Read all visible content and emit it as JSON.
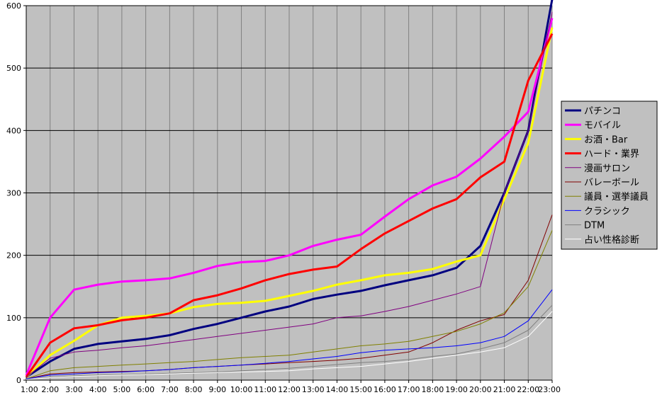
{
  "chart_data": {
    "type": "line",
    "x_labels": [
      "1:00",
      "2:00",
      "3:00",
      "4:00",
      "5:00",
      "6:00",
      "7:00",
      "8:00",
      "9:00",
      "10:00",
      "11:00",
      "12:00",
      "13:00",
      "14:00",
      "15:00",
      "16:00",
      "17:00",
      "18:00",
      "19:00",
      "20:00",
      "21:00",
      "22:00",
      "23:00"
    ],
    "y_ticks": [
      0,
      100,
      200,
      300,
      400,
      500,
      600
    ],
    "ylim": [
      0,
      600
    ],
    "grid": true,
    "background": "#c0c0c0",
    "legend_position": "right",
    "series": [
      {
        "name": "パチンコ",
        "color": "#000080",
        "width": 3,
        "values": [
          5,
          30,
          50,
          58,
          62,
          66,
          72,
          82,
          90,
          100,
          110,
          118,
          130,
          137,
          143,
          152,
          160,
          168,
          180,
          215,
          300,
          400,
          610
        ]
      },
      {
        "name": "モバイル",
        "color": "#ff00ff",
        "width": 3,
        "values": [
          8,
          100,
          145,
          153,
          158,
          160,
          163,
          172,
          183,
          189,
          191,
          200,
          215,
          225,
          233,
          262,
          290,
          312,
          326,
          355,
          390,
          430,
          580
        ]
      },
      {
        "name": "お酒・Bar",
        "color": "#ffff00",
        "width": 3,
        "values": [
          5,
          40,
          63,
          88,
          100,
          103,
          107,
          117,
          122,
          124,
          127,
          135,
          143,
          153,
          160,
          168,
          172,
          178,
          190,
          200,
          290,
          380,
          565
        ]
      },
      {
        "name": "ハード・業界",
        "color": "#ff0000",
        "width": 3,
        "values": [
          5,
          60,
          83,
          88,
          96,
          100,
          107,
          128,
          136,
          147,
          160,
          170,
          177,
          182,
          210,
          235,
          255,
          275,
          290,
          325,
          350,
          480,
          555
        ]
      },
      {
        "name": "漫画サロン",
        "color": "#800080",
        "width": 1,
        "values": [
          5,
          35,
          45,
          48,
          52,
          55,
          60,
          65,
          70,
          75,
          80,
          85,
          90,
          100,
          103,
          110,
          118,
          128,
          138,
          150,
          300,
          400,
          590
        ]
      },
      {
        "name": "バレーボール",
        "color": "#800000",
        "width": 1,
        "values": [
          2,
          10,
          12,
          13,
          14,
          15,
          17,
          20,
          22,
          24,
          26,
          28,
          30,
          32,
          35,
          40,
          45,
          60,
          80,
          95,
          105,
          160,
          265
        ]
      },
      {
        "name": "議員・選挙議員",
        "color": "#808000",
        "width": 1,
        "values": [
          2,
          15,
          20,
          22,
          24,
          26,
          28,
          30,
          33,
          36,
          38,
          40,
          45,
          50,
          55,
          58,
          62,
          70,
          78,
          90,
          108,
          150,
          240
        ]
      },
      {
        "name": "クラシック",
        "color": "#0000ff",
        "width": 1,
        "values": [
          2,
          8,
          10,
          12,
          13,
          15,
          17,
          20,
          22,
          24,
          27,
          30,
          34,
          38,
          44,
          48,
          50,
          52,
          55,
          60,
          70,
          95,
          145
        ]
      },
      {
        "name": "DTM",
        "color": "#808080",
        "width": 1,
        "values": [
          1,
          5,
          7,
          8,
          9,
          10,
          11,
          12,
          13,
          15,
          17,
          19,
          22,
          25,
          28,
          30,
          33,
          38,
          42,
          50,
          60,
          80,
          120
        ]
      },
      {
        "name": "占い性格診断",
        "color": "#ffffff",
        "width": 1,
        "values": [
          1,
          4,
          6,
          7,
          8,
          9,
          10,
          11,
          12,
          13,
          14,
          15,
          18,
          20,
          22,
          26,
          30,
          35,
          40,
          45,
          52,
          70,
          110
        ]
      }
    ]
  }
}
